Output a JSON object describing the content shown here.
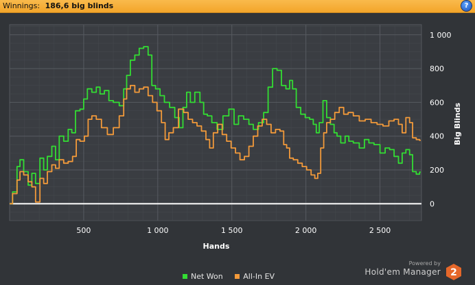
{
  "header": {
    "label": "Winnings:",
    "value": "186,6 big blinds",
    "help_icon": "question-mark-icon"
  },
  "colors": {
    "header_bg": "#f6ac35",
    "background": "#313438",
    "net_won": "#33dd33",
    "all_in_ev": "#f39a3a",
    "zero_line": "#ffffff"
  },
  "chart_data": {
    "type": "line",
    "title": "",
    "xlabel": "Hands",
    "ylabel": "Big Blinds",
    "xlim": [
      0,
      2780
    ],
    "ylim": [
      -100,
      1060
    ],
    "x_ticks": [
      500,
      1000,
      1500,
      2000,
      2500
    ],
    "x_tick_labels": [
      "500",
      "1 000",
      "1 500",
      "2 000",
      "2 500"
    ],
    "y_ticks": [
      0,
      200,
      400,
      600,
      800,
      1000
    ],
    "y_tick_labels": [
      "0",
      "200",
      "400",
      "600",
      "800",
      "1 000"
    ],
    "y_axis_side": "right",
    "grid": true,
    "legend_position": "bottom-center",
    "series": [
      {
        "name": "Net Won",
        "points": [
          [
            0,
            0
          ],
          [
            40,
            70
          ],
          [
            60,
            220
          ],
          [
            80,
            260
          ],
          [
            110,
            190
          ],
          [
            140,
            110
          ],
          [
            160,
            180
          ],
          [
            190,
            120
          ],
          [
            220,
            270
          ],
          [
            240,
            200
          ],
          [
            270,
            280
          ],
          [
            300,
            340
          ],
          [
            320,
            260
          ],
          [
            350,
            400
          ],
          [
            380,
            370
          ],
          [
            410,
            440
          ],
          [
            430,
            420
          ],
          [
            460,
            550
          ],
          [
            490,
            560
          ],
          [
            510,
            620
          ],
          [
            540,
            680
          ],
          [
            570,
            660
          ],
          [
            600,
            690
          ],
          [
            620,
            650
          ],
          [
            660,
            670
          ],
          [
            680,
            610
          ],
          [
            720,
            600
          ],
          [
            760,
            580
          ],
          [
            780,
            680
          ],
          [
            800,
            760
          ],
          [
            830,
            850
          ],
          [
            860,
            880
          ],
          [
            890,
            920
          ],
          [
            920,
            930
          ],
          [
            950,
            880
          ],
          [
            970,
            700
          ],
          [
            1000,
            680
          ],
          [
            1030,
            640
          ],
          [
            1060,
            600
          ],
          [
            1100,
            570
          ],
          [
            1130,
            510
          ],
          [
            1160,
            450
          ],
          [
            1180,
            570
          ],
          [
            1210,
            660
          ],
          [
            1230,
            600
          ],
          [
            1270,
            660
          ],
          [
            1300,
            600
          ],
          [
            1320,
            530
          ],
          [
            1350,
            520
          ],
          [
            1380,
            480
          ],
          [
            1420,
            440
          ],
          [
            1460,
            520
          ],
          [
            1500,
            560
          ],
          [
            1530,
            470
          ],
          [
            1560,
            520
          ],
          [
            1600,
            500
          ],
          [
            1630,
            470
          ],
          [
            1660,
            440
          ],
          [
            1700,
            480
          ],
          [
            1730,
            540
          ],
          [
            1760,
            690
          ],
          [
            1790,
            800
          ],
          [
            1820,
            790
          ],
          [
            1850,
            700
          ],
          [
            1880,
            680
          ],
          [
            1900,
            730
          ],
          [
            1920,
            680
          ],
          [
            1950,
            570
          ],
          [
            1980,
            530
          ],
          [
            2010,
            510
          ],
          [
            2040,
            500
          ],
          [
            2060,
            470
          ],
          [
            2080,
            420
          ],
          [
            2100,
            480
          ],
          [
            2130,
            610
          ],
          [
            2150,
            510
          ],
          [
            2180,
            470
          ],
          [
            2200,
            420
          ],
          [
            2220,
            400
          ],
          [
            2250,
            360
          ],
          [
            2280,
            400
          ],
          [
            2300,
            370
          ],
          [
            2340,
            360
          ],
          [
            2380,
            330
          ],
          [
            2410,
            380
          ],
          [
            2440,
            360
          ],
          [
            2480,
            350
          ],
          [
            2520,
            300
          ],
          [
            2550,
            330
          ],
          [
            2580,
            320
          ],
          [
            2610,
            280
          ],
          [
            2640,
            240
          ],
          [
            2660,
            300
          ],
          [
            2690,
            320
          ],
          [
            2710,
            290
          ],
          [
            2730,
            190
          ],
          [
            2760,
            175
          ],
          [
            2775,
            187
          ]
        ]
      },
      {
        "name": "All-In EV",
        "points": [
          [
            0,
            0
          ],
          [
            40,
            60
          ],
          [
            60,
            140
          ],
          [
            80,
            190
          ],
          [
            110,
            170
          ],
          [
            140,
            130
          ],
          [
            160,
            100
          ],
          [
            190,
            10
          ],
          [
            220,
            150
          ],
          [
            240,
            120
          ],
          [
            270,
            190
          ],
          [
            300,
            230
          ],
          [
            320,
            210
          ],
          [
            350,
            260
          ],
          [
            380,
            240
          ],
          [
            410,
            250
          ],
          [
            440,
            280
          ],
          [
            460,
            380
          ],
          [
            490,
            370
          ],
          [
            520,
            400
          ],
          [
            540,
            500
          ],
          [
            570,
            520
          ],
          [
            600,
            500
          ],
          [
            640,
            450
          ],
          [
            680,
            410
          ],
          [
            720,
            450
          ],
          [
            760,
            520
          ],
          [
            780,
            620
          ],
          [
            800,
            680
          ],
          [
            830,
            700
          ],
          [
            860,
            660
          ],
          [
            890,
            680
          ],
          [
            920,
            690
          ],
          [
            950,
            640
          ],
          [
            980,
            600
          ],
          [
            1010,
            550
          ],
          [
            1040,
            480
          ],
          [
            1060,
            380
          ],
          [
            1090,
            420
          ],
          [
            1120,
            450
          ],
          [
            1160,
            560
          ],
          [
            1190,
            540
          ],
          [
            1220,
            500
          ],
          [
            1250,
            480
          ],
          [
            1280,
            460
          ],
          [
            1310,
            430
          ],
          [
            1340,
            380
          ],
          [
            1360,
            330
          ],
          [
            1390,
            420
          ],
          [
            1420,
            470
          ],
          [
            1450,
            410
          ],
          [
            1480,
            370
          ],
          [
            1510,
            330
          ],
          [
            1540,
            300
          ],
          [
            1570,
            260
          ],
          [
            1600,
            280
          ],
          [
            1630,
            340
          ],
          [
            1660,
            400
          ],
          [
            1690,
            460
          ],
          [
            1720,
            500
          ],
          [
            1750,
            470
          ],
          [
            1780,
            420
          ],
          [
            1810,
            440
          ],
          [
            1840,
            430
          ],
          [
            1860,
            350
          ],
          [
            1880,
            330
          ],
          [
            1900,
            270
          ],
          [
            1930,
            260
          ],
          [
            1960,
            240
          ],
          [
            1990,
            220
          ],
          [
            2020,
            200
          ],
          [
            2050,
            170
          ],
          [
            2070,
            150
          ],
          [
            2090,
            180
          ],
          [
            2110,
            330
          ],
          [
            2130,
            420
          ],
          [
            2150,
            480
          ],
          [
            2180,
            500
          ],
          [
            2210,
            540
          ],
          [
            2240,
            570
          ],
          [
            2270,
            530
          ],
          [
            2300,
            540
          ],
          [
            2340,
            520
          ],
          [
            2380,
            490
          ],
          [
            2420,
            500
          ],
          [
            2460,
            480
          ],
          [
            2500,
            470
          ],
          [
            2540,
            460
          ],
          [
            2580,
            490
          ],
          [
            2610,
            500
          ],
          [
            2640,
            470
          ],
          [
            2660,
            420
          ],
          [
            2690,
            510
          ],
          [
            2710,
            480
          ],
          [
            2730,
            390
          ],
          [
            2760,
            380
          ],
          [
            2775,
            375
          ]
        ]
      }
    ]
  },
  "branding": {
    "powered_by": "Powered by",
    "product": "Hold'em Manager",
    "badge": "2"
  }
}
